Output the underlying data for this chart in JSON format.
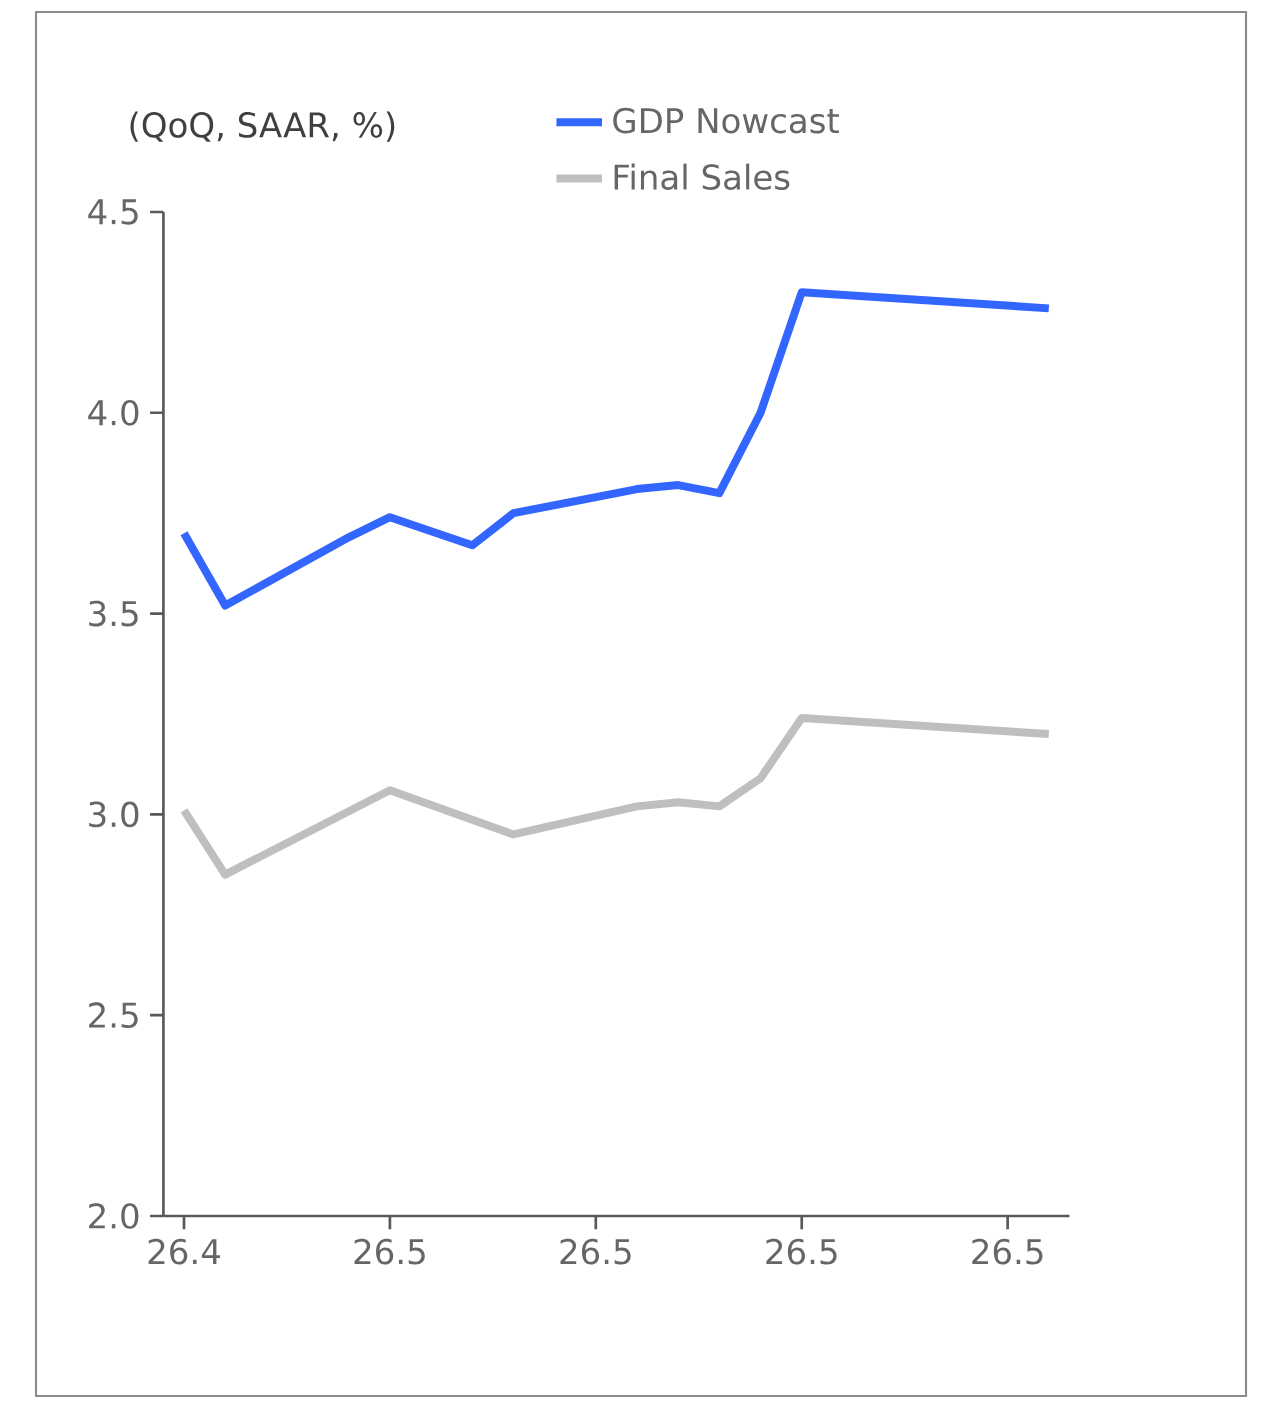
{
  "chart_data": {
    "type": "line",
    "ylabel": "(QoQ, SAAR, %)",
    "categories": [
      "26.4",
      null,
      null,
      null,
      null,
      "26.5",
      null,
      null,
      null,
      null,
      "26.5",
      null,
      null,
      null,
      null,
      "26.5",
      null,
      null,
      null,
      null,
      "26.5",
      null
    ],
    "series": [
      {
        "name": "GDP Nowcast",
        "color": "#3366ff",
        "values": [
          3.7,
          3.52,
          null,
          null,
          3.69,
          3.74,
          null,
          3.67,
          3.75,
          null,
          null,
          3.81,
          3.82,
          3.8,
          4.0,
          4.3,
          null,
          null,
          null,
          null,
          null,
          4.26
        ]
      },
      {
        "name": "Final Sales",
        "color": "#bfbfbf",
        "values": [
          3.01,
          2.85,
          null,
          null,
          null,
          3.06,
          null,
          null,
          2.95,
          null,
          null,
          3.02,
          3.03,
          3.02,
          3.09,
          3.24,
          null,
          null,
          null,
          null,
          null,
          3.2
        ]
      }
    ],
    "ylim": [
      2.0,
      4.5
    ],
    "yticks": [
      {
        "value": 2.0,
        "label": "2.0"
      },
      {
        "value": 2.5,
        "label": "2.5"
      },
      {
        "value": 3.0,
        "label": "3.0"
      },
      {
        "value": 3.5,
        "label": "3.5"
      },
      {
        "value": 4.0,
        "label": "4.0"
      },
      {
        "value": 4.5,
        "label": "4.5"
      }
    ],
    "legend": "top",
    "grid": false
  }
}
